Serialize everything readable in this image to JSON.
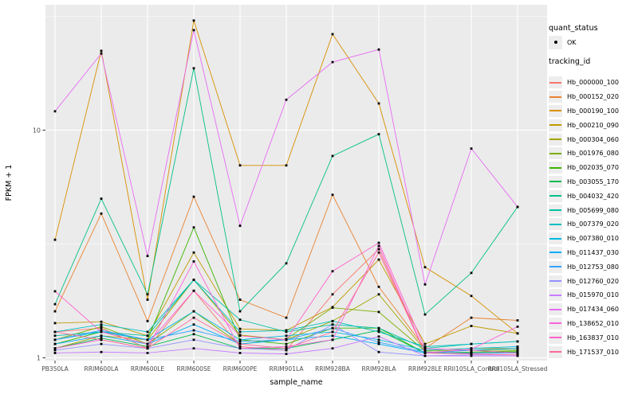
{
  "legend": {
    "quant_status_title": "quant_status",
    "quant_status_ok_label": "OK",
    "tracking_id_title": "tracking_id"
  },
  "chart_data": {
    "type": "line",
    "title": "",
    "xlabel": "sample_name",
    "ylabel": "FPKM + 1",
    "y_scale": "log10",
    "y_ticks": [
      1,
      10
    ],
    "ylim": [
      0.97,
      36
    ],
    "grid": "on",
    "legend_position": "right",
    "point_marker": "black dot (quant_status OK)",
    "panel_color": "#EBEBEB",
    "categories": [
      "PB350LA",
      "RRIM600LA",
      "RRIM600LE",
      "RRIM600SE",
      "RRIM600PE",
      "RRIM901LA",
      "RRIM928BA",
      "RRIM928LA",
      "RRIM928LE",
      "RRII105LA_Control",
      "RRII105LA_Stressed"
    ],
    "series": [
      {
        "name": "Hb_000000_100",
        "color": "#F8766D",
        "values": [
          1.3,
          1.35,
          1.1,
          1.97,
          1.12,
          1.08,
          1.9,
          3.0,
          1.05,
          1.05,
          1.05
        ]
      },
      {
        "name": "Hb_000152_020",
        "color": "#EA8331",
        "values": [
          1.6,
          4.3,
          1.45,
          5.1,
          1.8,
          1.5,
          5.2,
          2.05,
          1.1,
          1.5,
          1.46
        ]
      },
      {
        "name": "Hb_000190_100",
        "color": "#D89000",
        "values": [
          3.3,
          22.3,
          1.8,
          30.3,
          7.0,
          7.0,
          26.4,
          13.1,
          2.5,
          1.87,
          1.28
        ]
      },
      {
        "name": "Hb_000210_090",
        "color": "#C09B00",
        "values": [
          1.42,
          1.44,
          1.25,
          2.9,
          1.34,
          1.32,
          1.67,
          2.7,
          1.15,
          1.38,
          1.28
        ]
      },
      {
        "name": "Hb_000304_060",
        "color": "#A3A500",
        "values": [
          1.1,
          1.25,
          1.2,
          2.2,
          1.26,
          1.2,
          1.45,
          1.9,
          1.08,
          1.1,
          1.1
        ]
      },
      {
        "name": "Hb_001976_080",
        "color": "#7CAE00",
        "values": [
          1.2,
          1.37,
          1.15,
          1.6,
          1.15,
          1.21,
          1.66,
          1.59,
          1.07,
          1.08,
          1.08
        ]
      },
      {
        "name": "Hb_002035_070",
        "color": "#39B600",
        "values": [
          1.15,
          1.3,
          1.2,
          3.74,
          1.2,
          1.15,
          1.35,
          1.35,
          1.05,
          1.06,
          1.07
        ]
      },
      {
        "name": "Hb_003055_170",
        "color": "#00BB4E",
        "values": [
          1.1,
          1.22,
          1.12,
          1.27,
          1.1,
          1.1,
          1.2,
          1.32,
          1.05,
          1.05,
          1.06
        ]
      },
      {
        "name": "Hb_004032_420",
        "color": "#00C087",
        "values": [
          1.72,
          5.0,
          1.9,
          18.7,
          1.6,
          2.6,
          7.7,
          9.6,
          1.55,
          2.36,
          4.6
        ]
      },
      {
        "name": "Hb_005699_080",
        "color": "#00C1A3",
        "values": [
          1.25,
          1.3,
          1.25,
          2.2,
          1.47,
          1.3,
          1.4,
          1.35,
          1.1,
          1.15,
          1.18
        ]
      },
      {
        "name": "Hb_007379_020",
        "color": "#00BFC4",
        "values": [
          1.3,
          1.4,
          1.3,
          2.2,
          1.3,
          1.32,
          1.45,
          1.3,
          1.12,
          1.15,
          1.18
        ]
      },
      {
        "name": "Hb_007380_010",
        "color": "#00BAE0",
        "values": [
          1.2,
          1.3,
          1.2,
          1.6,
          1.2,
          1.25,
          1.3,
          1.2,
          1.08,
          1.1,
          1.12
        ]
      },
      {
        "name": "Hb_011437_030",
        "color": "#00ACFC",
        "values": [
          1.15,
          1.25,
          1.15,
          1.4,
          1.15,
          1.2,
          1.25,
          1.15,
          1.05,
          1.08,
          1.1
        ]
      },
      {
        "name": "Hb_012753_080",
        "color": "#35A2FF",
        "values": [
          1.2,
          1.32,
          1.2,
          1.32,
          1.18,
          1.2,
          1.35,
          1.17,
          1.06,
          1.05,
          1.05
        ]
      },
      {
        "name": "Hb_012760_020",
        "color": "#9590FF",
        "values": [
          1.08,
          1.15,
          1.1,
          1.2,
          1.1,
          1.08,
          1.4,
          1.06,
          1.02,
          1.03,
          1.03
        ]
      },
      {
        "name": "Hb_015970_010",
        "color": "#C77CFF",
        "values": [
          1.05,
          1.06,
          1.05,
          1.1,
          1.05,
          1.04,
          1.1,
          1.24,
          1.02,
          1.02,
          1.02
        ]
      },
      {
        "name": "Hb_017434_060",
        "color": "#E76BF3",
        "values": [
          12.1,
          21.7,
          2.8,
          27.5,
          3.8,
          13.6,
          19.9,
          22.6,
          2.1,
          8.3,
          4.6
        ]
      },
      {
        "name": "Hb_138652_010",
        "color": "#FA62DB",
        "values": [
          1.1,
          1.2,
          1.1,
          2.65,
          1.1,
          1.12,
          1.2,
          3.1,
          1.05,
          1.09,
          1.37
        ]
      },
      {
        "name": "Hb_163837_010",
        "color": "#FF61CC",
        "values": [
          1.96,
          1.3,
          1.15,
          1.97,
          1.25,
          1.2,
          2.4,
          3.2,
          1.1,
          1.08,
          1.05
        ]
      },
      {
        "name": "Hb_171537_010",
        "color": "#FF6A98",
        "values": [
          1.3,
          1.2,
          1.1,
          1.5,
          1.15,
          1.1,
          1.3,
          2.9,
          1.05,
          1.04,
          1.03
        ]
      }
    ]
  }
}
